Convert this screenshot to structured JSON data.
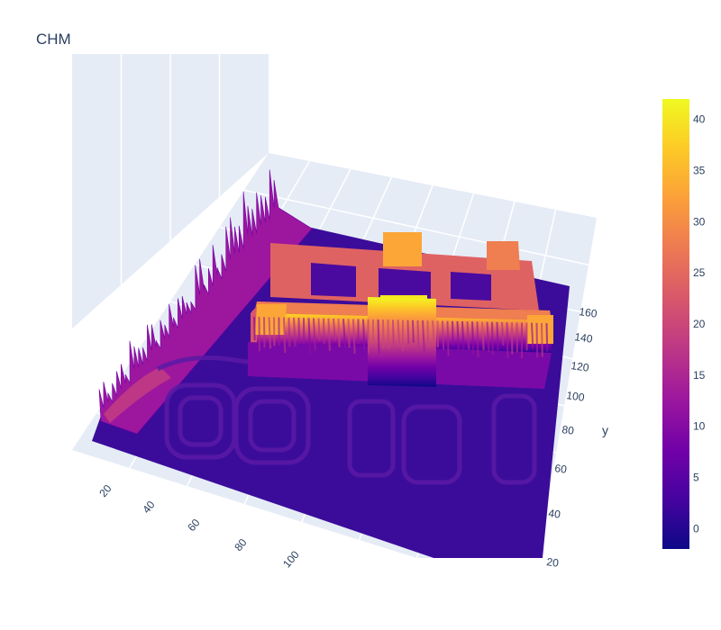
{
  "chart_data": {
    "type": "surface",
    "title": "CHM",
    "xaxis": {
      "title": "",
      "ticks": [
        "20",
        "40",
        "60",
        "80",
        "100"
      ]
    },
    "yaxis": {
      "title": "y",
      "ticks": [
        "20",
        "40",
        "60",
        "80",
        "100",
        "120",
        "140",
        "160"
      ]
    },
    "colorbar": {
      "ticks": [
        "0",
        "5",
        "10",
        "15",
        "20",
        "25",
        "30",
        "35",
        "40"
      ],
      "range": [
        -2,
        42
      ],
      "colorscale": [
        "#0d0887",
        "#46039f",
        "#7201a8",
        "#9c179e",
        "#bd3786",
        "#d8576b",
        "#ed7953",
        "#fb9f3a",
        "#fdca26",
        "#f0f921"
      ]
    },
    "grid": true
  }
}
